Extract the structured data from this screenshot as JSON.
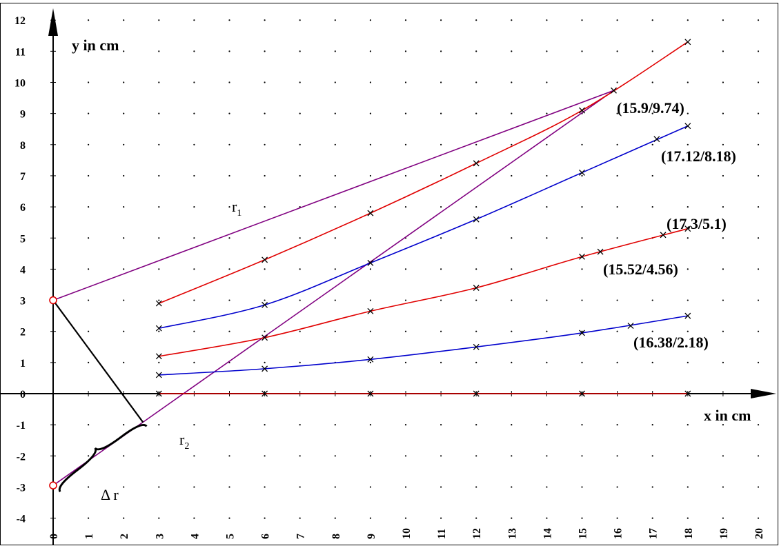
{
  "chart_data": {
    "type": "line",
    "xlabel": "x in cm",
    "ylabel": "y in cm",
    "xlim": [
      0,
      20
    ],
    "ylim": [
      -4,
      12
    ],
    "x_ticks": [
      "0",
      "1",
      "2",
      "3",
      "4",
      "5",
      "6",
      "7",
      "8",
      "9",
      "10",
      "11",
      "12",
      "13",
      "14",
      "15",
      "16",
      "17",
      "18",
      "19",
      "20"
    ],
    "y_ticks": [
      "-4",
      "-3",
      "-2",
      "-1",
      "0",
      "1",
      "2",
      "3",
      "4",
      "5",
      "6",
      "7",
      "8",
      "9",
      "10",
      "11",
      "12"
    ],
    "grid": "dotted",
    "colors": {
      "red": "#e00000",
      "blue": "#0000cc",
      "purple": "#800080",
      "black": "#000000"
    },
    "series": [
      {
        "color": "#e00000",
        "points": [
          [
            3,
            2.9
          ],
          [
            6,
            4.3
          ],
          [
            9,
            5.8
          ],
          [
            12,
            7.4
          ],
          [
            15,
            9.1
          ],
          [
            18,
            11.3
          ]
        ]
      },
      {
        "color": "#0000cc",
        "points": [
          [
            3,
            2.1
          ],
          [
            6,
            2.85
          ],
          [
            9,
            4.2
          ],
          [
            12,
            5.6
          ],
          [
            15,
            7.1
          ],
          [
            18,
            8.6
          ]
        ]
      },
      {
        "color": "#e00000",
        "points": [
          [
            3,
            1.2
          ],
          [
            6,
            1.8
          ],
          [
            9,
            2.65
          ],
          [
            12,
            3.4
          ],
          [
            15,
            4.4
          ],
          [
            18,
            5.3
          ]
        ]
      },
      {
        "color": "#0000cc",
        "points": [
          [
            3,
            0.6
          ],
          [
            6,
            0.8
          ],
          [
            9,
            1.1
          ],
          [
            12,
            1.5
          ],
          [
            15,
            1.95
          ],
          [
            18,
            2.5
          ]
        ]
      },
      {
        "color": "#e00000",
        "points": [
          [
            3,
            0
          ],
          [
            6,
            0
          ],
          [
            9,
            0
          ],
          [
            12,
            0
          ],
          [
            15,
            0
          ],
          [
            18,
            0
          ]
        ]
      }
    ],
    "extra_markers": [
      [
        17.12,
        8.18
      ],
      [
        15.52,
        4.56
      ],
      [
        17.3,
        5.1
      ],
      [
        16.38,
        2.18
      ],
      [
        15.9,
        9.74
      ]
    ],
    "sources": [
      [
        0,
        3
      ],
      [
        0,
        -2.95
      ]
    ],
    "lines": [
      {
        "color": "#800080",
        "from": [
          0,
          3
        ],
        "to": [
          15.9,
          9.74
        ]
      },
      {
        "color": "#800080",
        "from": [
          0,
          -2.95
        ],
        "to": [
          15.9,
          9.74
        ]
      },
      {
        "color": "#000000",
        "from": [
          0,
          3
        ],
        "to": [
          2.55,
          -0.92
        ]
      }
    ],
    "brace": {
      "from": [
        0.2,
        -3.15
      ],
      "to": [
        2.65,
        -1.05
      ]
    },
    "annotations": [
      {
        "text": "(15.9/9.74)",
        "x": 15.9,
        "y": 9.74
      },
      {
        "text": "(17.12/8.18)",
        "x": 17.12,
        "y": 8.18
      },
      {
        "text": "(17.3/5.1)",
        "x": 17.3,
        "y": 5.1
      },
      {
        "text": "(15.52/4.56)",
        "x": 15.52,
        "y": 4.56
      },
      {
        "text": "(16.38/2.18)",
        "x": 16.38,
        "y": 2.18
      }
    ],
    "symbols": {
      "r1": "r",
      "r1_sub": "1",
      "r2": "r",
      "r2_sub": "2",
      "delta_r": "Δ r"
    }
  }
}
